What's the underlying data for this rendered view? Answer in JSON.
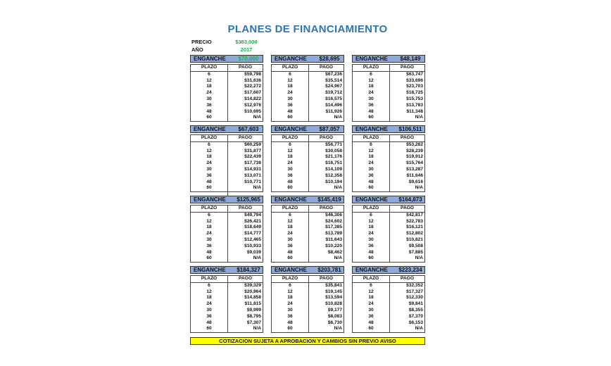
{
  "title": "PLANES DE FINANCIAMIENTO",
  "precio_label": "PRECIO",
  "precio_value": "$383,000",
  "anio_label": "AÑO",
  "anio_value": "2017",
  "enganche_label": "ENGANCHE",
  "col_plazo": "PLAZO",
  "col_pago": "PAGO",
  "plazos": [
    "6",
    "12",
    "18",
    "24",
    "30",
    "36",
    "48",
    "60"
  ],
  "colors": {
    "title": "#2e74b5",
    "green": "#1fae4f",
    "header_bg": "#8eaadb",
    "note_bg": "#ffff00"
  },
  "plans": [
    {
      "enganche": "$70,000",
      "pagos": [
        "$59,798",
        "$31,636",
        "$22,272",
        "$17,607",
        "$14,822",
        "$12,976",
        "$10,695",
        "N/A"
      ]
    },
    {
      "enganche": "$28,695",
      "pagos": [
        "$67,236",
        "$35,514",
        "$24,967",
        "$19,712",
        "$16,575",
        "$14,496",
        "$11,926",
        "N/A"
      ]
    },
    {
      "enganche": "$48,149",
      "pagos": [
        "$63,747",
        "$33,696",
        "$23,703",
        "$18,725",
        "$15,753",
        "$13,783",
        "$11,348",
        "N/A"
      ]
    },
    {
      "enganche": "$67,603",
      "pagos": [
        "$60,259",
        "$31,877",
        "$22,439",
        "$17,738",
        "$14,931",
        "$13,071",
        "$10,771",
        "N/A"
      ]
    },
    {
      "enganche": "$87,057",
      "pagos": [
        "$56,771",
        "$30,058",
        "$21,176",
        "$16,751",
        "$14,109",
        "$12,358",
        "$10,194",
        "N/A"
      ]
    },
    {
      "enganche": "$106,511",
      "pagos": [
        "$53,282",
        "$28,239",
        "$19,912",
        "$15,764",
        "$13,287",
        "$11,646",
        "$9,616",
        "N/A"
      ]
    },
    {
      "enganche": "$125,965",
      "pagos": [
        "$49,794",
        "$26,421",
        "$18,649",
        "$14,777",
        "$12,465",
        "$10,933",
        "$9,039",
        "N/A"
      ]
    },
    {
      "enganche": "$145,419",
      "pagos": [
        "$46,306",
        "$24,602",
        "$17,385",
        "$13,789",
        "$11,643",
        "$10,220",
        "$8,462",
        "N/A"
      ]
    },
    {
      "enganche": "$164,873",
      "pagos": [
        "$42,817",
        "$22,783",
        "$16,121",
        "$12,802",
        "$10,821",
        "$9,508",
        "$7,885",
        "N/A"
      ]
    },
    {
      "enganche": "$184,327",
      "pagos": [
        "$39,329",
        "$20,964",
        "$14,858",
        "$11,815",
        "$9,999",
        "$8,795",
        "$7,307",
        "N/A"
      ]
    },
    {
      "enganche": "$203,781",
      "pagos": [
        "$35,841",
        "$19,145",
        "$13,594",
        "$10,828",
        "$9,177",
        "$8,083",
        "$6,730",
        "N/A"
      ]
    },
    {
      "enganche": "$223,234",
      "pagos": [
        "$32,352",
        "$17,327",
        "$12,330",
        "$9,841",
        "$8,355",
        "$7,370",
        "$6,153",
        "N/A"
      ]
    }
  ],
  "note": "COTIZACION SUJETA A APROBACION Y CAMBIOS SIN PREVIO AVISO"
}
